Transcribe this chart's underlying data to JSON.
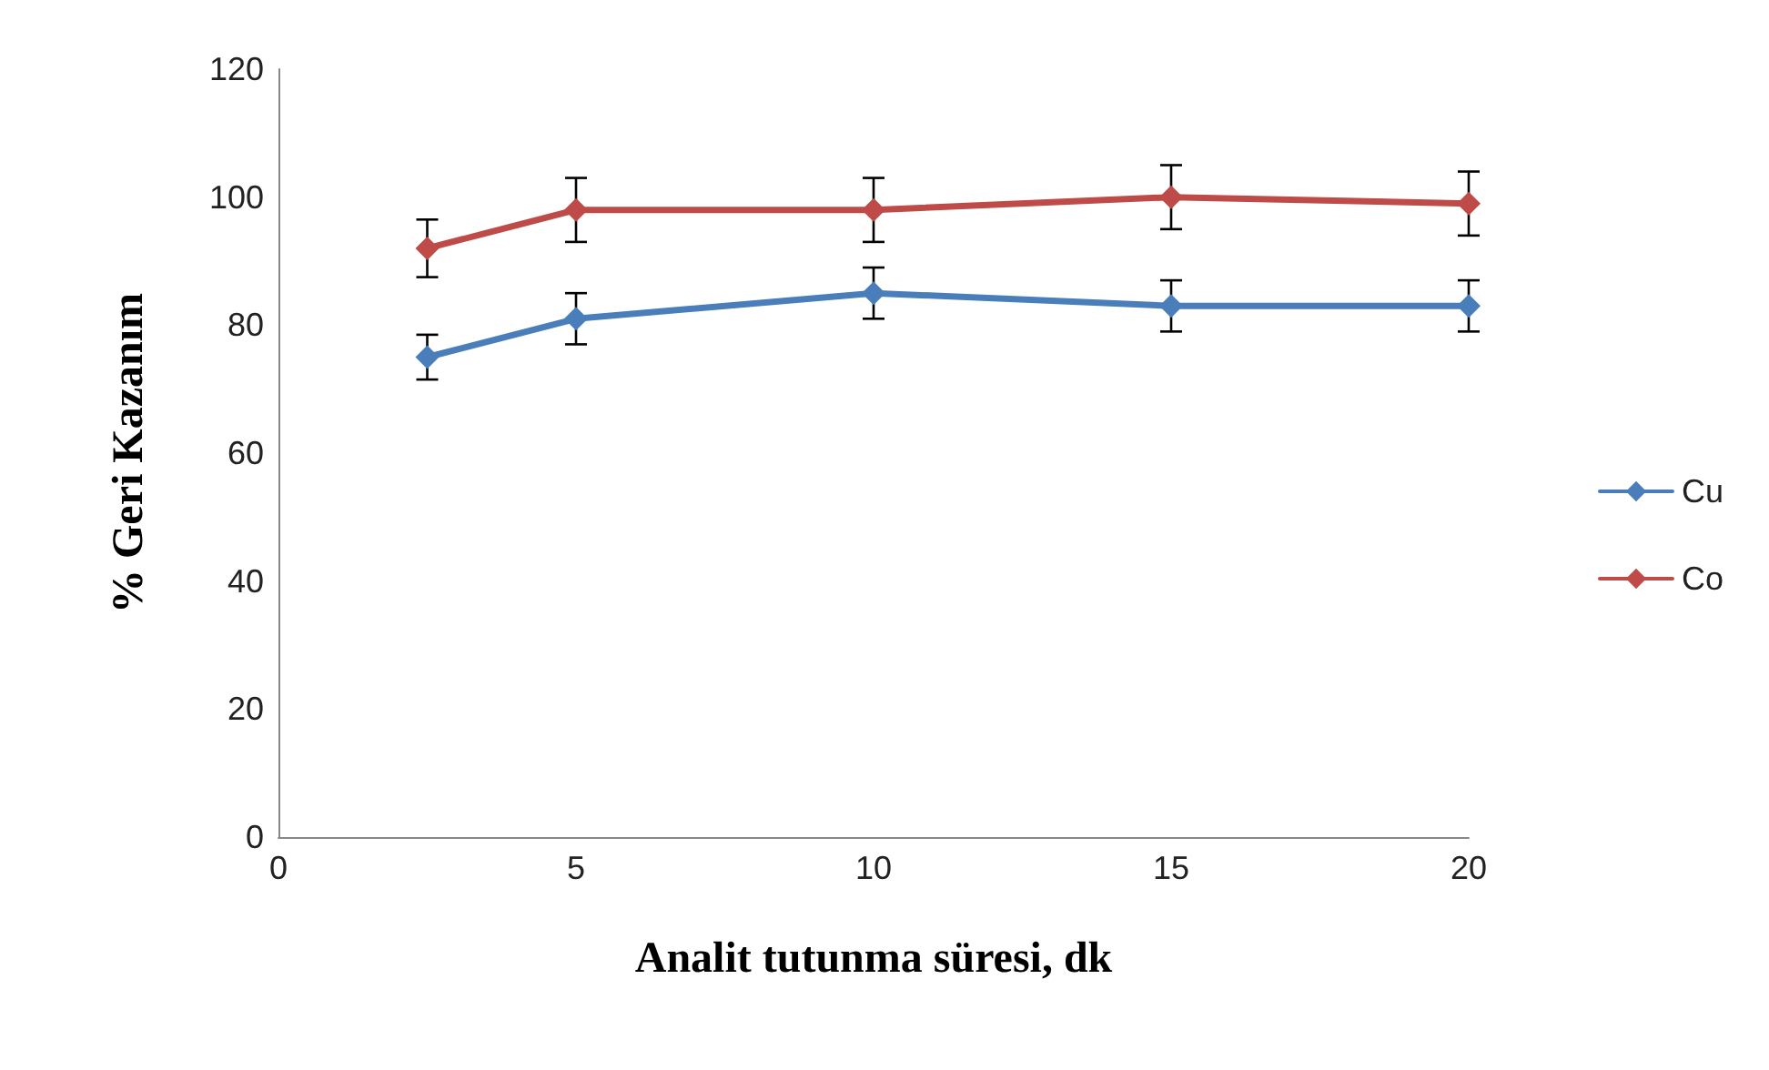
{
  "chart_data": {
    "type": "line",
    "xlabel": "Analit tutunma süresi, dk",
    "ylabel": "% Geri Kazanım",
    "x": [
      2.5,
      5,
      10,
      15,
      20
    ],
    "series": [
      {
        "name": "Cu",
        "color": "#4a7ebb",
        "values": [
          75,
          81,
          85,
          83,
          83
        ],
        "errors": [
          3.5,
          4,
          4,
          4,
          4
        ]
      },
      {
        "name": "Co",
        "color": "#be4b48",
        "values": [
          92,
          98,
          98,
          100,
          99
        ],
        "errors": [
          4.5,
          5,
          5,
          5,
          5
        ]
      }
    ],
    "xlim": [
      0,
      20
    ],
    "xticks": [
      0,
      5,
      10,
      15,
      20
    ],
    "ylim": [
      0,
      120
    ],
    "yticks": [
      0,
      20,
      40,
      60,
      80,
      100,
      120
    ],
    "grid": false,
    "legend": "right",
    "marker": "diamond",
    "line_style": "solid"
  }
}
